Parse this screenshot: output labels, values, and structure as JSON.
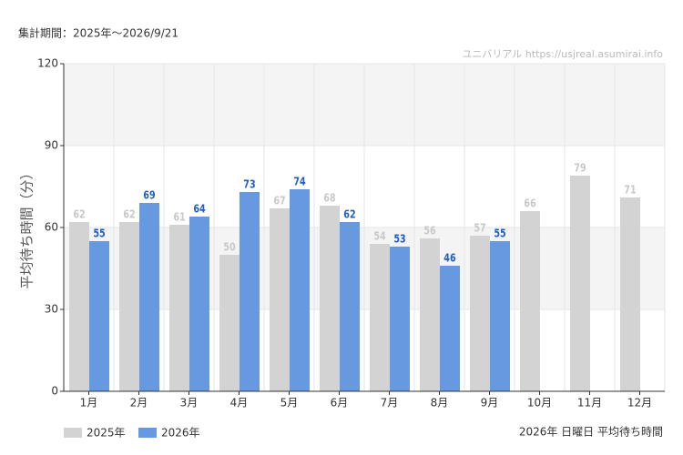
{
  "chart_data": {
    "type": "bar",
    "title": "集計期間：2025年～2026/9/21",
    "watermark": "ユニバリアル  https://usjreal.asumirai.info",
    "footnote": "2026年 日曜日 平均待ち時間",
    "y_label": "平均待ち時間（分）",
    "categories": [
      "1月",
      "2月",
      "3月",
      "4月",
      "5月",
      "6月",
      "7月",
      "8月",
      "9月",
      "10月",
      "11月",
      "12月"
    ],
    "series": [
      {
        "name": "2025年",
        "color": "#d3d3d3",
        "label_color": "#c8c8c8",
        "values": [
          62,
          62,
          61,
          50,
          67,
          68,
          54,
          56,
          57,
          66,
          79,
          71
        ]
      },
      {
        "name": "2026年",
        "color": "#6699e0",
        "label_color": "#1f5fc4",
        "values": [
          55,
          69,
          64,
          73,
          74,
          62,
          53,
          46,
          55,
          null,
          null,
          null
        ]
      }
    ],
    "ylim": [
      0,
      120
    ],
    "yticks": [
      0,
      30,
      60,
      90,
      120
    ],
    "grid": true
  }
}
